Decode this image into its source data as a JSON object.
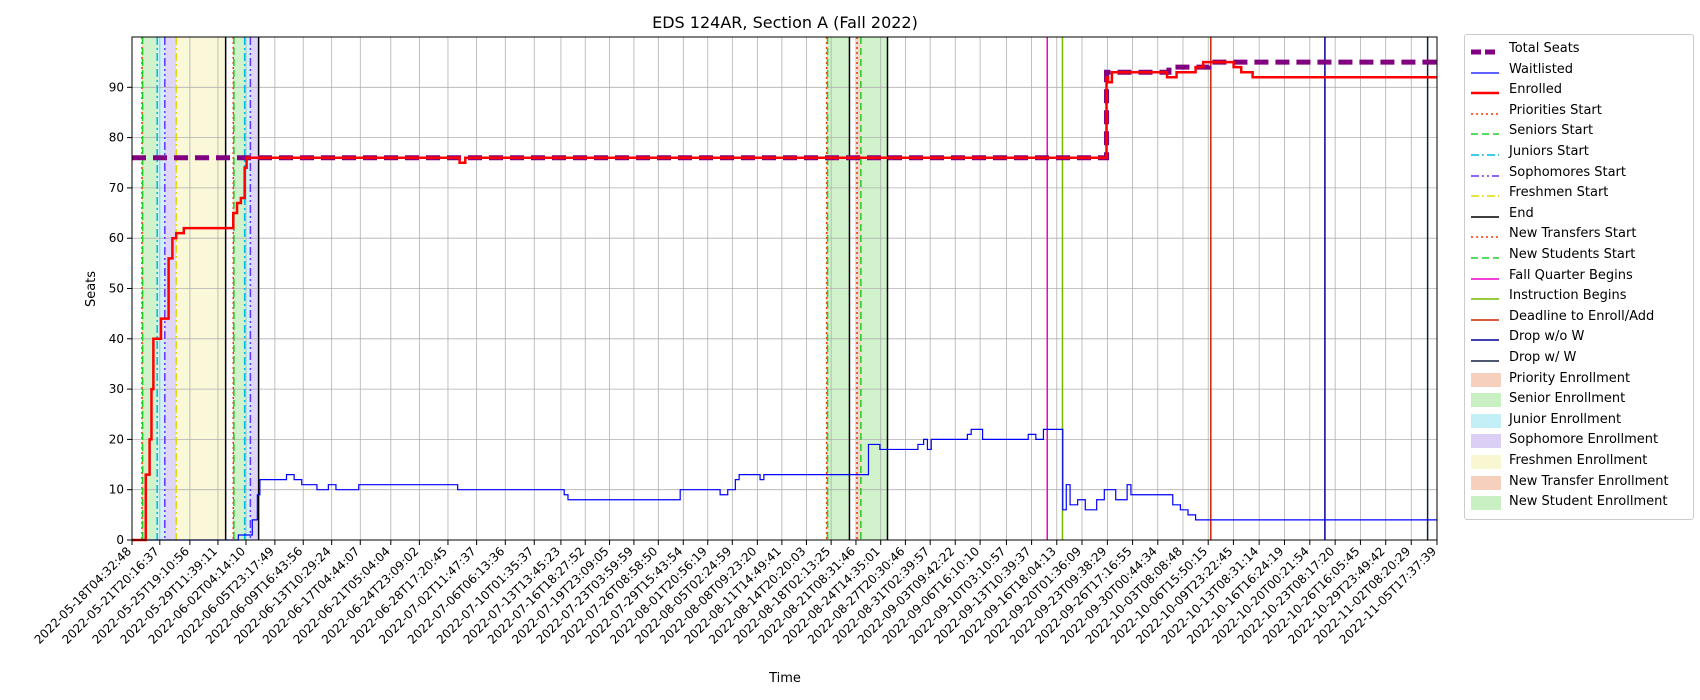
{
  "chart_data": {
    "type": "line",
    "title": "EDS 124AR, Section A (Fall 2022)",
    "xlabel": "Time",
    "ylabel": "Seats",
    "ylim": [
      0,
      100
    ],
    "yticks": [
      0,
      10,
      20,
      30,
      40,
      50,
      60,
      70,
      80,
      90
    ],
    "grid": true,
    "legend_position": "outside-right",
    "x_range": [
      "2022-05-18T04:32:48",
      "2022-11-05T17:37:39"
    ],
    "x_tick_labels": [
      "2022-05-18T04:32:48",
      "2022-05-21T20:16:37",
      "2022-05-25T19:10:56",
      "2022-05-29T11:39:11",
      "2022-06-02T04:14:10",
      "2022-06-05T23:17:49",
      "2022-06-09T16:43:56",
      "2022-06-13T10:29:24",
      "2022-06-17T04:44:07",
      "2022-06-21T05:04:04",
      "2022-06-24T23:09:02",
      "2022-06-28T17:20:45",
      "2022-07-02T11:47:37",
      "2022-07-06T06:13:36",
      "2022-07-10T01:35:37",
      "2022-07-13T13:45:23",
      "2022-07-16T18:27:52",
      "2022-07-19T23:09:05",
      "2022-07-23T03:59:59",
      "2022-07-26T08:58:50",
      "2022-07-29T15:43:54",
      "2022-08-01T20:56:19",
      "2022-08-05T02:24:59",
      "2022-08-08T09:23:20",
      "2022-08-11T14:49:41",
      "2022-08-14T20:20:03",
      "2022-08-18T02:13:25",
      "2022-08-21T08:31:46",
      "2022-08-24T14:35:01",
      "2022-08-27T20:30:46",
      "2022-08-31T02:39:57",
      "2022-09-03T09:42:22",
      "2022-09-06T16:10:10",
      "2022-09-10T03:10:57",
      "2022-09-13T10:39:37",
      "2022-09-16T18:04:13",
      "2022-09-20T01:36:09",
      "2022-09-23T09:38:29",
      "2022-09-26T17:16:55",
      "2022-09-30T00:44:34",
      "2022-10-03T08:08:48",
      "2022-10-06T15:50:15",
      "2022-10-09T23:22:45",
      "2022-10-13T08:31:14",
      "2022-10-16T16:24:19",
      "2022-10-20T00:21:54",
      "2022-10-23T08:17:20",
      "2022-10-26T16:05:45",
      "2022-10-29T23:49:42",
      "2022-11-02T08:20:29",
      "2022-11-05T17:37:39"
    ],
    "series": [
      {
        "name": "Total Seats",
        "color": "#800080",
        "style": "dashed-thick",
        "points": [
          [
            "2022-05-18T04:32:48",
            76
          ],
          [
            "2022-09-23T06:00:00",
            76
          ],
          [
            "2022-09-23T07:00:00",
            93
          ],
          [
            "2022-10-01T00:00:00",
            93
          ],
          [
            "2022-10-01T12:00:00",
            94
          ],
          [
            "2022-10-06T12:00:00",
            94
          ],
          [
            "2022-10-06T18:00:00",
            95
          ],
          [
            "2022-11-05T17:37:39",
            95
          ]
        ]
      },
      {
        "name": "Waitlisted",
        "color": "#0000ff",
        "style": "solid-thin",
        "points": [
          [
            "2022-05-18T04:32:48",
            0
          ],
          [
            "2022-06-01T00:00:00",
            0
          ],
          [
            "2022-06-01T04:00:00",
            1
          ],
          [
            "2022-06-02T20:00:00",
            1
          ],
          [
            "2022-06-03T00:00:00",
            4
          ],
          [
            "2022-06-03T16:00:00",
            9
          ],
          [
            "2022-06-04T00:00:00",
            12
          ],
          [
            "2022-06-07T00:00:00",
            12
          ],
          [
            "2022-06-07T12:00:00",
            13
          ],
          [
            "2022-06-08T12:00:00",
            12
          ],
          [
            "2022-06-09T12:00:00",
            11
          ],
          [
            "2022-06-11T12:00:00",
            10
          ],
          [
            "2022-06-13T00:00:00",
            11
          ],
          [
            "2022-06-14T00:00:00",
            10
          ],
          [
            "2022-06-17T00:00:00",
            11
          ],
          [
            "2022-06-29T12:00:00",
            11
          ],
          [
            "2022-06-30T00:00:00",
            10
          ],
          [
            "2022-07-13T12:00:00",
            10
          ],
          [
            "2022-07-14T00:00:00",
            9
          ],
          [
            "2022-07-14T12:00:00",
            8
          ],
          [
            "2022-07-29T00:00:00",
            8
          ],
          [
            "2022-07-29T06:00:00",
            10
          ],
          [
            "2022-08-03T00:00:00",
            10
          ],
          [
            "2022-08-03T12:00:00",
            9
          ],
          [
            "2022-08-04T12:00:00",
            10
          ],
          [
            "2022-08-05T12:00:00",
            12
          ],
          [
            "2022-08-06T00:00:00",
            13
          ],
          [
            "2022-08-08T12:00:00",
            13
          ],
          [
            "2022-08-08T18:00:00",
            12
          ],
          [
            "2022-08-09T06:00:00",
            13
          ],
          [
            "2022-08-22T12:00:00",
            13
          ],
          [
            "2022-08-23T00:00:00",
            19
          ],
          [
            "2022-08-24T12:00:00",
            18
          ],
          [
            "2022-08-29T12:00:00",
            19
          ],
          [
            "2022-08-30T06:00:00",
            20
          ],
          [
            "2022-08-30T18:00:00",
            18
          ],
          [
            "2022-08-31T06:00:00",
            20
          ],
          [
            "2022-09-05T00:00:00",
            21
          ],
          [
            "2022-09-05T12:00:00",
            22
          ],
          [
            "2022-09-07T00:00:00",
            20
          ],
          [
            "2022-09-13T00:00:00",
            21
          ],
          [
            "2022-09-14T00:00:00",
            20
          ],
          [
            "2022-09-15T00:00:00",
            22
          ],
          [
            "2022-09-17T12:00:00",
            22
          ],
          [
            "2022-09-17T13:00:00",
            6
          ],
          [
            "2022-09-18T00:00:00",
            11
          ],
          [
            "2022-09-18T12:00:00",
            7
          ],
          [
            "2022-09-19T12:00:00",
            8
          ],
          [
            "2022-09-20T12:00:00",
            6
          ],
          [
            "2022-09-22T00:00:00",
            8
          ],
          [
            "2022-09-23T00:00:00",
            10
          ],
          [
            "2022-09-24T12:00:00",
            8
          ],
          [
            "2022-09-26T00:00:00",
            11
          ],
          [
            "2022-09-26T12:00:00",
            9
          ],
          [
            "2022-10-01T00:00:00",
            9
          ],
          [
            "2022-10-02T00:00:00",
            7
          ],
          [
            "2022-10-03T00:00:00",
            6
          ],
          [
            "2022-10-04T00:00:00",
            5
          ],
          [
            "2022-10-05T00:00:00",
            4
          ],
          [
            "2022-11-05T17:37:39",
            4
          ]
        ]
      },
      {
        "name": "Enrolled",
        "color": "#ff0000",
        "style": "solid-thick",
        "points": [
          [
            "2022-05-18T04:32:48",
            0
          ],
          [
            "2022-05-19T12:00:00",
            0
          ],
          [
            "2022-05-20T00:00:00",
            13
          ],
          [
            "2022-05-20T12:00:00",
            20
          ],
          [
            "2022-05-20T18:00:00",
            30
          ],
          [
            "2022-05-21T00:00:00",
            40
          ],
          [
            "2022-05-22T00:00:00",
            44
          ],
          [
            "2022-05-23T00:00:00",
            56
          ],
          [
            "2022-05-23T12:00:00",
            60
          ],
          [
            "2022-05-24T00:00:00",
            61
          ],
          [
            "2022-05-25T00:00:00",
            62
          ],
          [
            "2022-05-31T00:00:00",
            62
          ],
          [
            "2022-05-31T12:00:00",
            65
          ],
          [
            "2022-06-01T00:00:00",
            67
          ],
          [
            "2022-06-01T12:00:00",
            68
          ],
          [
            "2022-06-02T00:00:00",
            74
          ],
          [
            "2022-06-02T06:00:00",
            76
          ],
          [
            "2022-06-30T00:00:00",
            76
          ],
          [
            "2022-06-30T06:00:00",
            75
          ],
          [
            "2022-07-01T00:00:00",
            76
          ],
          [
            "2022-09-23T06:00:00",
            76
          ],
          [
            "2022-09-23T07:00:00",
            92
          ],
          [
            "2022-09-23T12:00:00",
            91
          ],
          [
            "2022-09-24T00:00:00",
            93
          ],
          [
            "2022-10-01T00:00:00",
            93
          ],
          [
            "2022-10-01T06:00:00",
            92
          ],
          [
            "2022-10-02T12:00:00",
            93
          ],
          [
            "2022-10-05T00:00:00",
            94
          ],
          [
            "2022-10-06T00:00:00",
            95
          ],
          [
            "2022-10-09T00:00:00",
            95
          ],
          [
            "2022-10-10T00:00:00",
            94
          ],
          [
            "2022-10-11T00:00:00",
            93
          ],
          [
            "2022-10-12T12:00:00",
            92
          ],
          [
            "2022-11-05T17:37:39",
            92
          ]
        ]
      }
    ],
    "markers": [
      {
        "name": "Priorities Start",
        "color": "#ff3300",
        "style": "dotted",
        "x": [
          "2022-05-19T12:00:00",
          "2022-05-31T12:00:00",
          "2022-08-17T12:00:00"
        ]
      },
      {
        "name": "Seniors Start",
        "color": "#22cc22",
        "style": "dashed",
        "x": [
          "2022-05-19T14:00:00",
          "2022-05-31T14:00:00",
          "2022-08-17T15:00:00"
        ]
      },
      {
        "name": "Juniors Start",
        "color": "#00bbdd",
        "style": "dashdot",
        "x": [
          "2022-05-21T12:00:00",
          "2022-06-02T00:00:00"
        ]
      },
      {
        "name": "Sophomores Start",
        "color": "#6633ff",
        "style": "dashdotdot",
        "x": [
          "2022-05-22T12:00:00",
          "2022-06-02T18:00:00"
        ]
      },
      {
        "name": "Freshmen Start",
        "color": "#dddd00",
        "style": "dashdot",
        "x": [
          "2022-05-24T00:00:00"
        ]
      },
      {
        "name": "End",
        "color": "#000000",
        "style": "solid",
        "x": [
          "2022-05-30T12:00:00",
          "2022-06-03T20:00:00",
          "2022-08-20T12:00:00",
          "2022-08-25T12:00:00"
        ]
      },
      {
        "name": "New Transfers Start",
        "color": "#ff3300",
        "style": "dotted",
        "x": [
          "2022-08-21T12:00:00"
        ]
      },
      {
        "name": "New Students Start",
        "color": "#22cc22",
        "style": "dashed",
        "x": [
          "2022-08-22T00:00:00"
        ]
      },
      {
        "name": "Fall Quarter Begins",
        "color": "#ee00cc",
        "style": "solid",
        "x": [
          "2022-09-15T12:00:00"
        ]
      },
      {
        "name": "Instruction Begins",
        "color": "#77bb00",
        "style": "solid",
        "x": [
          "2022-09-17T12:00:00"
        ]
      },
      {
        "name": "Deadline to Enroll/Add",
        "color": "#cc2200",
        "style": "solid",
        "x": [
          "2022-10-07T00:00:00"
        ]
      },
      {
        "name": "Drop w/o W",
        "color": "#000099",
        "style": "solid",
        "x": [
          "2022-10-22T00:00:00"
        ]
      },
      {
        "name": "Drop w/ W",
        "color": "#102040",
        "style": "solid",
        "x": [
          "2022-11-04T12:00:00"
        ]
      }
    ],
    "spans": [
      {
        "name": "Priority Enrollment",
        "color": "#f4c0a8",
        "ranges": [
          [
            "2022-05-19T12:00:00",
            "2022-05-19T14:00:00"
          ],
          [
            "2022-05-31T12:00:00",
            "2022-05-31T14:00:00"
          ],
          [
            "2022-08-17T12:00:00",
            "2022-08-17T15:00:00"
          ]
        ]
      },
      {
        "name": "Senior Enrollment",
        "color": "#b8ecb0",
        "ranges": [
          [
            "2022-05-19T14:00:00",
            "2022-05-21T12:00:00"
          ],
          [
            "2022-05-31T14:00:00",
            "2022-06-02T00:00:00"
          ],
          [
            "2022-08-17T15:00:00",
            "2022-08-20T12:00:00"
          ]
        ]
      },
      {
        "name": "Junior Enrollment",
        "color": "#b0ecf4",
        "ranges": [
          [
            "2022-05-21T12:00:00",
            "2022-05-22T12:00:00"
          ],
          [
            "2022-06-02T00:00:00",
            "2022-06-02T18:00:00"
          ]
        ]
      },
      {
        "name": "Sophomore Enrollment",
        "color": "#d0c0f4",
        "ranges": [
          [
            "2022-05-22T12:00:00",
            "2022-05-24T00:00:00"
          ],
          [
            "2022-06-02T18:00:00",
            "2022-06-03T20:00:00"
          ]
        ]
      },
      {
        "name": "Freshmen Enrollment",
        "color": "#f8f4c4",
        "ranges": [
          [
            "2022-05-24T00:00:00",
            "2022-05-30T12:00:00"
          ]
        ]
      },
      {
        "name": "New Transfer Enrollment",
        "color": "#f4c0a8",
        "ranges": [
          [
            "2022-08-21T12:00:00",
            "2022-08-22T00:00:00"
          ]
        ]
      },
      {
        "name": "New Student Enrollment",
        "color": "#b8ecb0",
        "ranges": [
          [
            "2022-08-22T00:00:00",
            "2022-08-25T12:00:00"
          ]
        ]
      }
    ],
    "legend": [
      {
        "label": "Total Seats",
        "kind": "line",
        "color": "#800080",
        "style": "dashed-thick"
      },
      {
        "label": "Waitlisted",
        "kind": "line",
        "color": "#0000ff",
        "style": "solid-thin"
      },
      {
        "label": "Enrolled",
        "kind": "line",
        "color": "#ff0000",
        "style": "solid-thick"
      },
      {
        "label": "Priorities Start",
        "kind": "line",
        "color": "#ff3300",
        "style": "dotted"
      },
      {
        "label": "Seniors Start",
        "kind": "line",
        "color": "#22cc22",
        "style": "dashed"
      },
      {
        "label": "Juniors Start",
        "kind": "line",
        "color": "#00bbdd",
        "style": "dashdot"
      },
      {
        "label": "Sophomores Start",
        "kind": "line",
        "color": "#6633ff",
        "style": "dashdotdot"
      },
      {
        "label": "Freshmen Start",
        "kind": "line",
        "color": "#dddd00",
        "style": "dashdot"
      },
      {
        "label": "End",
        "kind": "line",
        "color": "#000000",
        "style": "solid"
      },
      {
        "label": "New Transfers Start",
        "kind": "line",
        "color": "#ff3300",
        "style": "dotted"
      },
      {
        "label": "New Students Start",
        "kind": "line",
        "color": "#22cc22",
        "style": "dashed"
      },
      {
        "label": "Fall Quarter Begins",
        "kind": "line",
        "color": "#ee00cc",
        "style": "solid"
      },
      {
        "label": "Instruction Begins",
        "kind": "line",
        "color": "#77bb00",
        "style": "solid"
      },
      {
        "label": "Deadline to Enroll/Add",
        "kind": "line",
        "color": "#cc2200",
        "style": "solid"
      },
      {
        "label": "Drop w/o W",
        "kind": "line",
        "color": "#000099",
        "style": "solid"
      },
      {
        "label": "Drop w/ W",
        "kind": "line",
        "color": "#102040",
        "style": "solid"
      },
      {
        "label": "Priority Enrollment",
        "kind": "patch",
        "color": "#f4c0a8"
      },
      {
        "label": "Senior Enrollment",
        "kind": "patch",
        "color": "#b8ecb0"
      },
      {
        "label": "Junior Enrollment",
        "kind": "patch",
        "color": "#b0ecf4"
      },
      {
        "label": "Sophomore Enrollment",
        "kind": "patch",
        "color": "#d0c0f4"
      },
      {
        "label": "Freshmen Enrollment",
        "kind": "patch",
        "color": "#f8f4c4"
      },
      {
        "label": "New Transfer Enrollment",
        "kind": "patch",
        "color": "#f4c0a8"
      },
      {
        "label": "New Student Enrollment",
        "kind": "patch",
        "color": "#b8ecb0"
      }
    ]
  }
}
